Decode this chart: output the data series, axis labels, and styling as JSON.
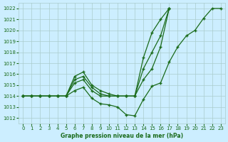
{
  "title": "Graphe pression niveau de la mer (hPa)",
  "background_color": "#cceeff",
  "grid_color": "#aacccc",
  "line_color": "#1a6b1a",
  "x_ticks": [
    0,
    1,
    2,
    3,
    4,
    5,
    6,
    7,
    8,
    9,
    10,
    11,
    12,
    13,
    14,
    15,
    16,
    17,
    18,
    19,
    20,
    21,
    22,
    23
  ],
  "ylim": [
    1011.5,
    1022.5
  ],
  "xlim": [
    -0.5,
    23.5
  ],
  "yticks": [
    1012,
    1013,
    1014,
    1015,
    1016,
    1017,
    1018,
    1019,
    1020,
    1021,
    1022
  ],
  "line1": [
    1014.0,
    1014.0,
    1014.0,
    1014.0,
    1014.0,
    1014.0,
    1014.5,
    1014.8,
    1013.8,
    1013.3,
    1013.2,
    1013.0,
    1012.3,
    1012.2,
    1013.7,
    1014.9,
    1015.2,
    1017.1,
    1018.5,
    1019.5,
    1020.0,
    1021.1,
    1022.0,
    1022.0
  ],
  "line2": [
    1014.0,
    1014.0,
    1014.0,
    1014.0,
    1014.0,
    1014.0,
    1015.2,
    1015.5,
    1014.5,
    1014.0,
    1014.0,
    1014.0,
    1014.0,
    1014.0,
    1015.5,
    1016.5,
    1018.5,
    1022.0,
    null,
    null,
    null,
    null,
    null,
    null
  ],
  "line3": [
    1014.0,
    1014.0,
    1014.0,
    1014.0,
    1014.0,
    1014.0,
    1015.5,
    1015.8,
    1014.8,
    1014.2,
    1014.0,
    1014.0,
    1014.0,
    1014.0,
    1016.5,
    1018.0,
    1019.5,
    1022.0,
    null,
    null,
    null,
    null,
    null,
    null
  ],
  "line4": [
    1014.0,
    1014.0,
    1014.0,
    1014.0,
    1014.0,
    1014.0,
    1015.8,
    1016.2,
    1015.0,
    1014.5,
    1014.2,
    1014.0,
    1014.0,
    1014.0,
    1017.5,
    1019.8,
    1021.0,
    1022.0,
    null,
    null,
    null,
    null,
    null,
    null
  ]
}
